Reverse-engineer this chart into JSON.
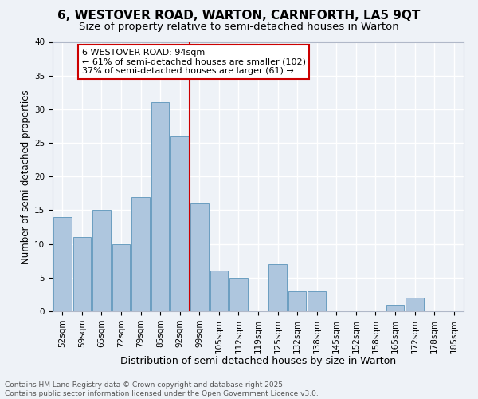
{
  "title1": "6, WESTOVER ROAD, WARTON, CARNFORTH, LA5 9QT",
  "title2": "Size of property relative to semi-detached houses in Warton",
  "xlabel": "Distribution of semi-detached houses by size in Warton",
  "ylabel": "Number of semi-detached properties",
  "categories": [
    "52sqm",
    "59sqm",
    "65sqm",
    "72sqm",
    "79sqm",
    "85sqm",
    "92sqm",
    "99sqm",
    "105sqm",
    "112sqm",
    "119sqm",
    "125sqm",
    "132sqm",
    "138sqm",
    "145sqm",
    "152sqm",
    "158sqm",
    "165sqm",
    "172sqm",
    "178sqm",
    "185sqm"
  ],
  "values": [
    14,
    11,
    15,
    10,
    17,
    31,
    26,
    16,
    6,
    5,
    0,
    7,
    3,
    3,
    0,
    0,
    0,
    1,
    2,
    0,
    0
  ],
  "bar_color": "#aec6de",
  "bar_edge_color": "#6a9ec0",
  "vline_x": 6.5,
  "vline_color": "#cc0000",
  "annotation_text": "6 WESTOVER ROAD: 94sqm\n← 61% of semi-detached houses are smaller (102)\n37% of semi-detached houses are larger (61) →",
  "annotation_box_edge": "#cc0000",
  "ylim": [
    0,
    40
  ],
  "yticks": [
    0,
    5,
    10,
    15,
    20,
    25,
    30,
    35,
    40
  ],
  "footnote": "Contains HM Land Registry data © Crown copyright and database right 2025.\nContains public sector information licensed under the Open Government Licence v3.0.",
  "bg_color": "#eef2f7",
  "grid_color": "#ffffff",
  "title1_fontsize": 11,
  "title2_fontsize": 9.5,
  "xlabel_fontsize": 9,
  "ylabel_fontsize": 8.5,
  "tick_fontsize": 7.5,
  "annotation_fontsize": 8,
  "footnote_fontsize": 6.5
}
